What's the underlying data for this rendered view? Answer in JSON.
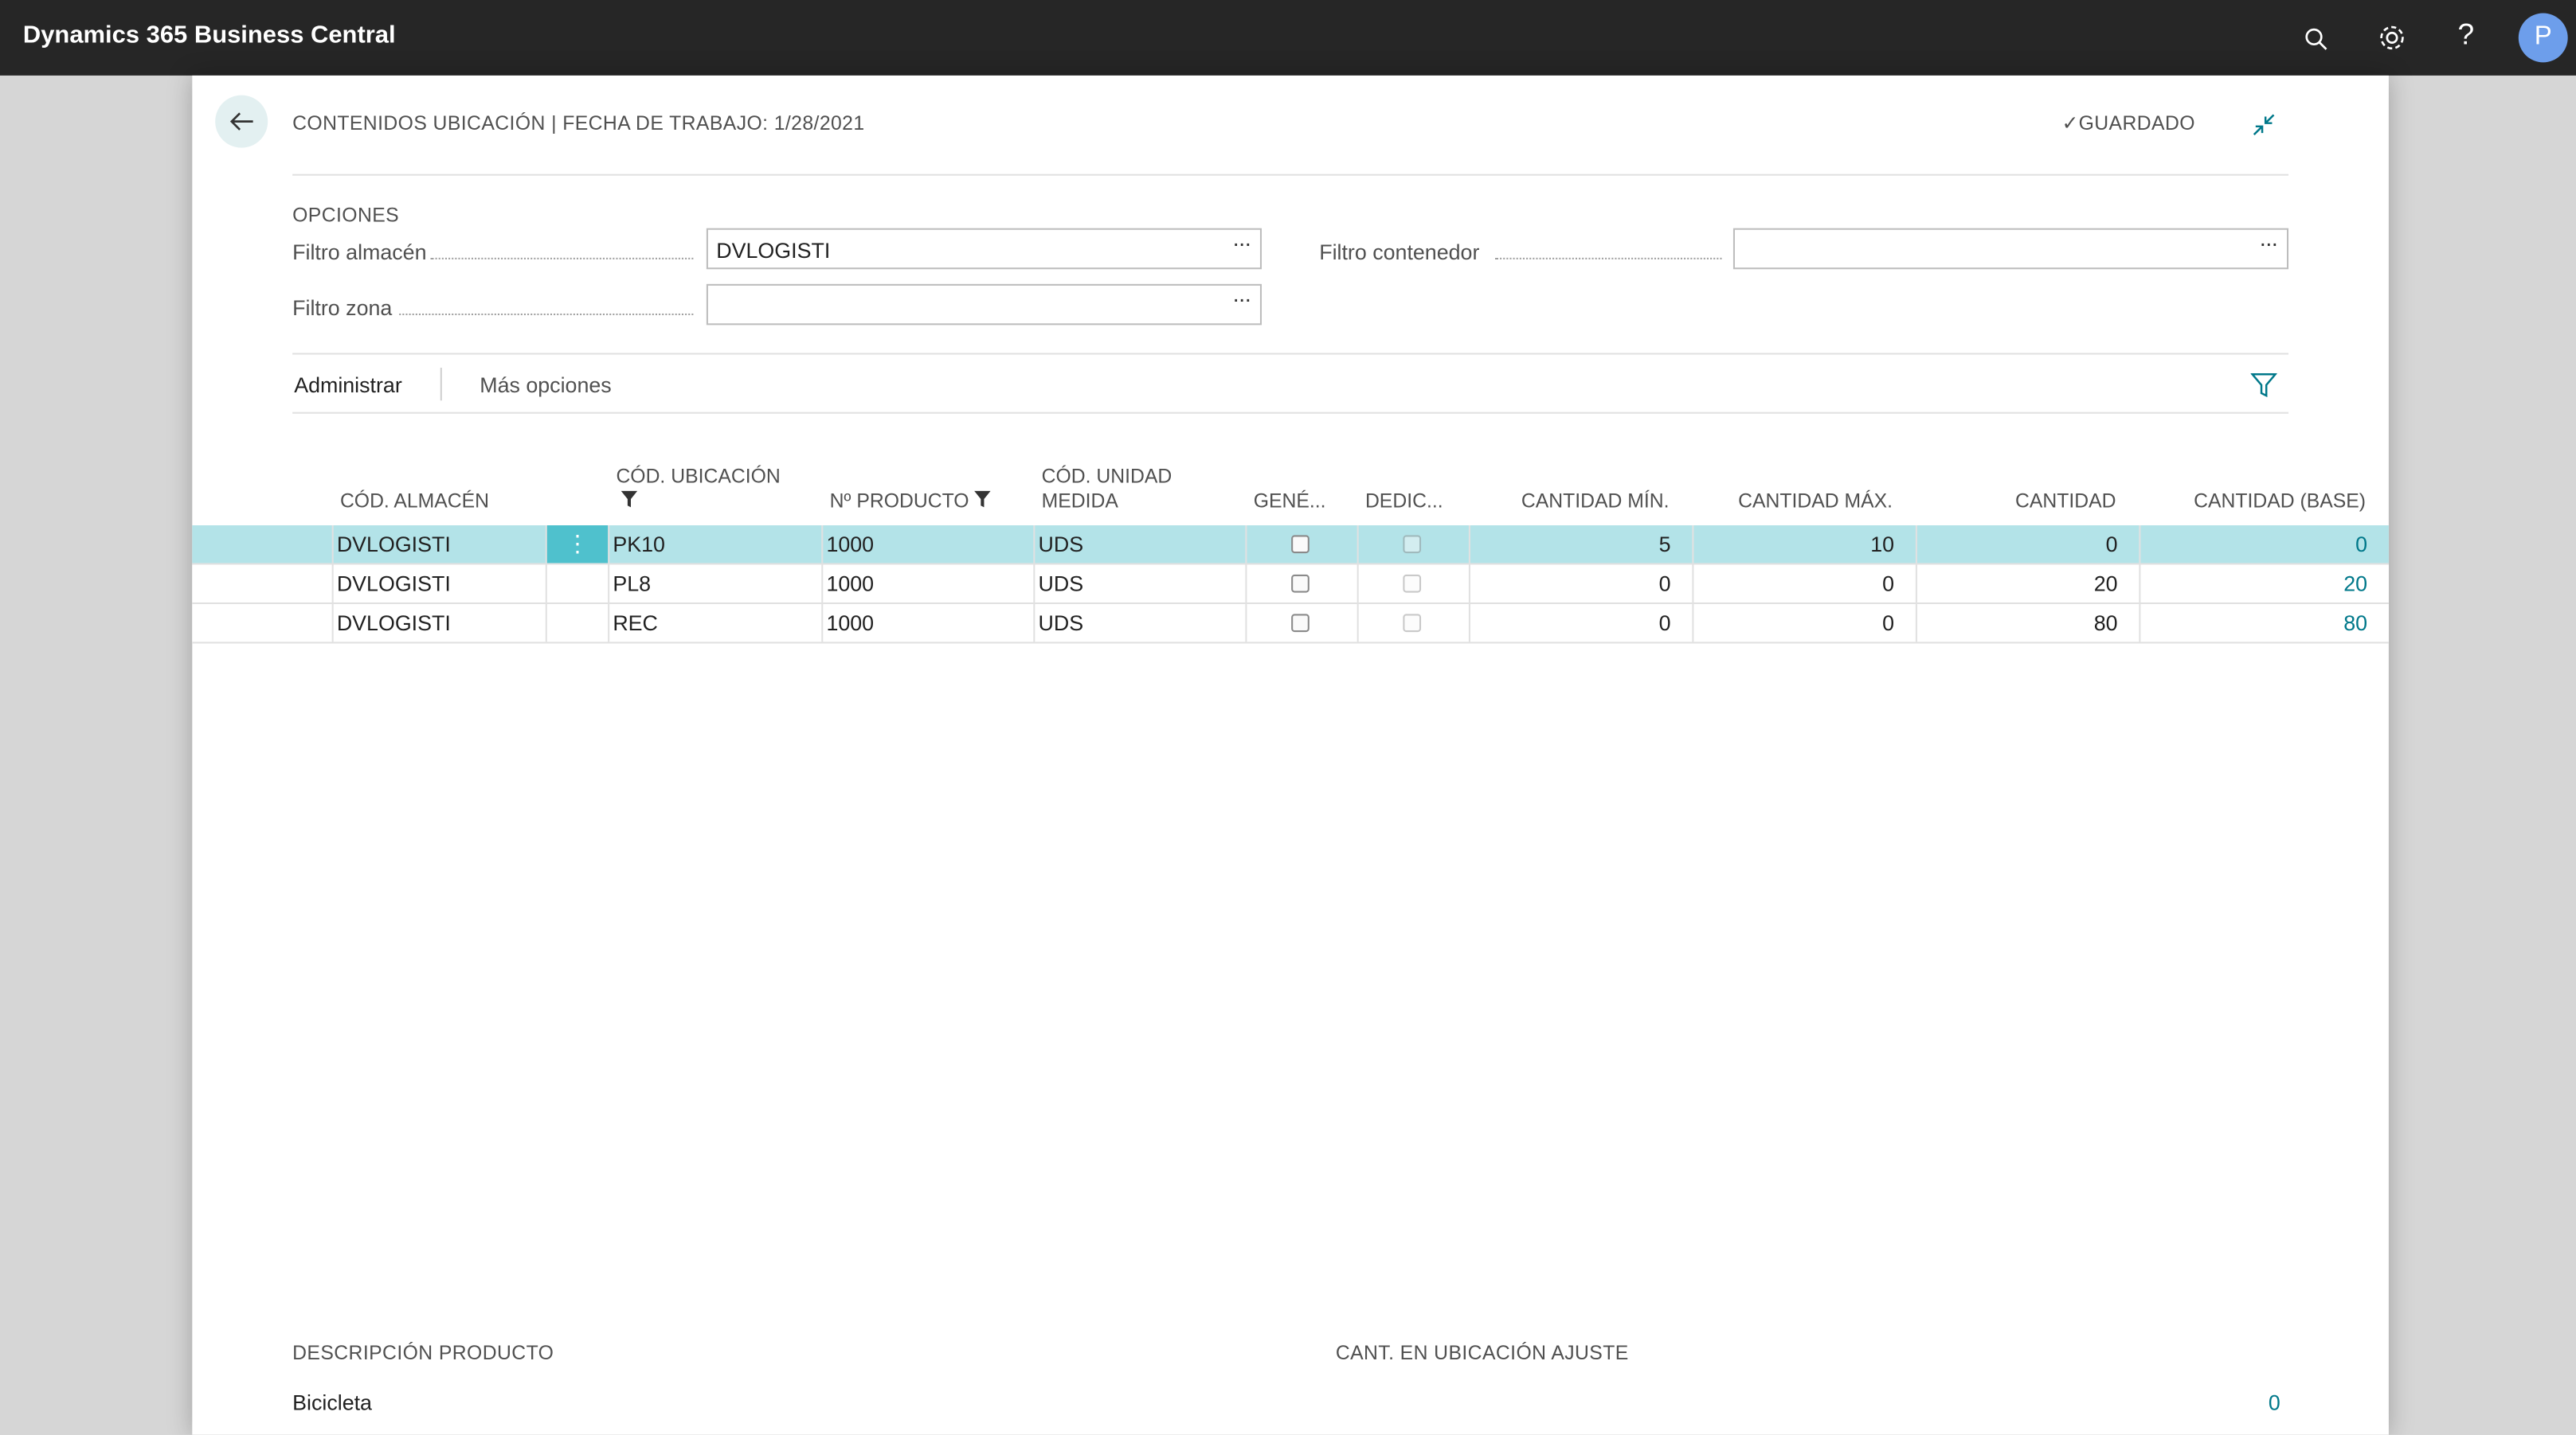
{
  "header": {
    "app_name": "Dynamics 365 Business Central",
    "user_initial": "P"
  },
  "page": {
    "title": "CONTENIDOS UBICACIÓN | FECHA DE TRABAJO: 1/28/2021",
    "saved_status": "GUARDADO"
  },
  "options": {
    "heading": "OPCIONES",
    "fields": [
      {
        "label": "Filtro almacén",
        "value": "DVLOGISTI"
      },
      {
        "label": "Filtro zona"
      },
      {
        "label": "Filtro contenedor"
      }
    ]
  },
  "actions": [
    "Administrar",
    "Más opciones"
  ],
  "table": {
    "columns": [
      "CÓD. ALMACÉN",
      "CÓD. UBICACIÓN",
      "Nº PRODUCTO",
      "CÓD. UNIDAD MEDIDA",
      "GENÉ...",
      "DEDIC...",
      "CANTIDAD MÍN.",
      "CANTIDAD MÁX.",
      "CANTIDAD",
      "CANTIDAD (BASE)"
    ],
    "rows": [
      [
        "DVLOGISTI",
        "PK10",
        "1000",
        "UDS",
        "5",
        "10",
        "0",
        "0"
      ],
      [
        "DVLOGISTI",
        "PL8",
        "1000",
        "UDS",
        "0",
        "0",
        "20",
        "20"
      ],
      [
        "DVLOGISTI",
        "REC",
        "1000",
        "UDS",
        "0",
        "0",
        "80",
        "80"
      ]
    ]
  },
  "footer": [
    {
      "label": "DESCRIPCIÓN PRODUCTO",
      "value": "Bicicleta"
    },
    {
      "label": "CANT. EN UBICACIÓN AJUSTE",
      "value": "0"
    }
  ]
}
